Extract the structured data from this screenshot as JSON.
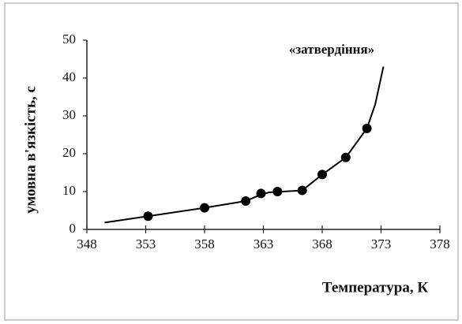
{
  "chart_data": {
    "type": "scatter",
    "annotation": "«затвердіння»",
    "xlabel": "Температура, К",
    "ylabel": "умовна в'язкість, с",
    "x": [
      353.2,
      358,
      361.5,
      362.8,
      364.2,
      366.3,
      368,
      370,
      371.8
    ],
    "values": [
      3.5,
      5.7,
      7.5,
      9.5,
      10,
      10.3,
      14.5,
      19,
      26.7
    ],
    "curve": {
      "x": [
        349.5,
        353.2,
        358,
        361.5,
        362.8,
        363.5,
        366.3,
        368,
        370,
        371.8,
        372.5,
        373.2
      ],
      "values": [
        1.8,
        3.5,
        5.7,
        7.5,
        9.2,
        9.8,
        10.3,
        14.5,
        19,
        26.7,
        33,
        43
      ]
    },
    "color": "#000000",
    "xlim": [
      348,
      378
    ],
    "xticks": [
      348,
      353,
      358,
      363,
      368,
      373,
      378
    ],
    "ylim": [
      0,
      50
    ],
    "yticks": [
      0,
      10,
      20,
      30,
      40,
      50
    ]
  }
}
